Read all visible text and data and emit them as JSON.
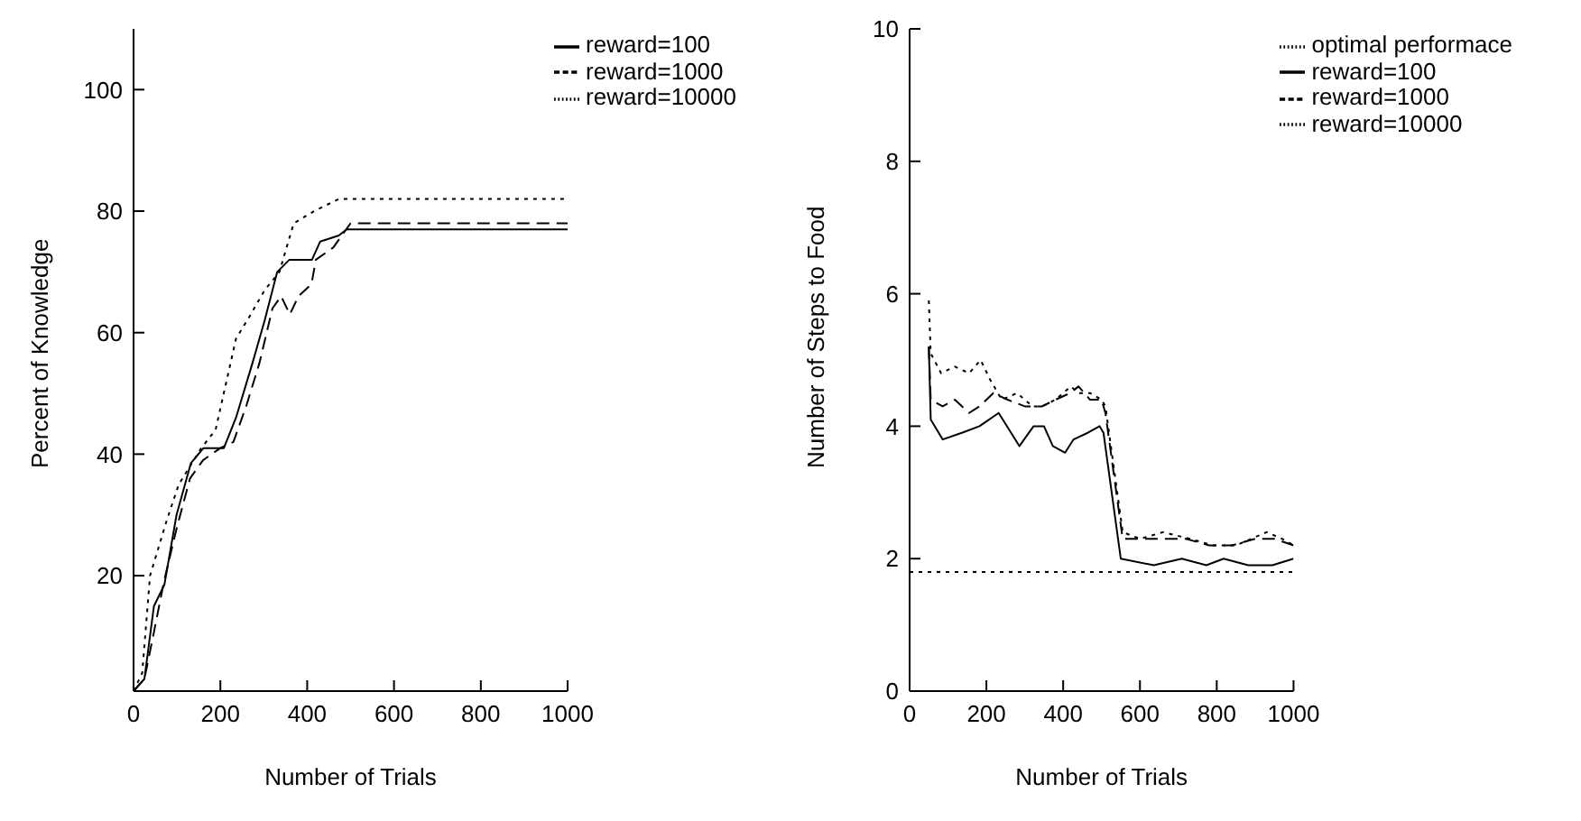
{
  "chart_data": [
    {
      "type": "line",
      "xlabel": "Number of Trials",
      "ylabel": "Percent of Knowledge",
      "xlim": [
        0,
        1000
      ],
      "xticks": [
        0,
        200,
        400,
        600,
        800,
        1000
      ],
      "ylim": [
        1,
        110
      ],
      "yticks": [
        20,
        40,
        60,
        80,
        100
      ],
      "legend": "top right",
      "grid": false,
      "series": [
        {
          "name": "reward=100",
          "color": "#000000",
          "line_style": "solid",
          "x": [
            0,
            25,
            47,
            71,
            99,
            132,
            161,
            208,
            236,
            274,
            302,
            331,
            359,
            411,
            430,
            473,
            491,
            1000
          ],
          "values": [
            1,
            3,
            15,
            18.5,
            30,
            38.5,
            41,
            41,
            46,
            55,
            62,
            70,
            72,
            72,
            75,
            76,
            77,
            77
          ]
        },
        {
          "name": "reward=1000",
          "color": "#000000",
          "line_style": "dashed",
          "x": [
            0,
            25,
            45,
            70,
            100,
            130,
            160,
            200,
            230,
            260,
            290,
            320,
            340,
            360,
            380,
            410,
            420,
            460,
            480,
            500,
            1000
          ],
          "values": [
            1,
            3,
            10,
            19,
            28,
            36,
            39,
            41,
            42,
            48,
            55,
            64,
            66,
            63,
            66,
            68,
            72,
            74,
            76,
            78,
            78
          ]
        },
        {
          "name": "reward=10000",
          "color": "#000000",
          "line_style": "dotted",
          "x": [
            0,
            20,
            38,
            76,
            104,
            156,
            189,
            236,
            270,
            302,
            336,
            369,
            416,
            473,
            1000
          ],
          "values": [
            1,
            4,
            20,
            29,
            35,
            41,
            44,
            59,
            63,
            67,
            70,
            78,
            80,
            82,
            82
          ]
        }
      ]
    },
    {
      "type": "line",
      "xlabel": "Number of Trials",
      "ylabel": "Number of Steps to Food",
      "xlim": [
        0,
        1000
      ],
      "xticks": [
        0,
        200,
        400,
        600,
        800,
        1000
      ],
      "ylim": [
        0,
        10
      ],
      "yticks": [
        0,
        2,
        4,
        6,
        8,
        10
      ],
      "legend": "top right",
      "grid": false,
      "series": [
        {
          "name": "optimal performace",
          "color": "#000000",
          "line_style": "dotted",
          "x": [
            0,
            1000
          ],
          "values": [
            1.8,
            1.8
          ]
        },
        {
          "name": "reward=100",
          "color": "#000000",
          "line_style": "solid",
          "x": [
            50,
            55,
            86,
            136,
            182,
            232,
            286,
            323,
            350,
            373,
            405,
            427,
            464,
            495,
            505,
            550,
            636,
            709,
            773,
            818,
            882,
            945,
            1000
          ],
          "values": [
            5.2,
            4.1,
            3.8,
            3.9,
            4,
            4.2,
            3.7,
            4,
            4,
            3.7,
            3.6,
            3.8,
            3.9,
            4,
            3.9,
            2,
            1.9,
            2,
            1.9,
            2,
            1.9,
            1.9,
            2
          ]
        },
        {
          "name": "reward=1000",
          "color": "#000000",
          "line_style": "dashed",
          "x": [
            50,
            55,
            86,
            118,
            155,
            182,
            218,
            255,
            300,
            345,
            380,
            418,
            440,
            470,
            500,
            510,
            555,
            600,
            660,
            720,
            780,
            840,
            900,
            950,
            1000
          ],
          "values": [
            5.2,
            4.4,
            4.3,
            4.4,
            4.2,
            4.3,
            4.5,
            4.4,
            4.3,
            4.3,
            4.4,
            4.5,
            4.6,
            4.4,
            4.4,
            4.2,
            2.3,
            2.3,
            2.3,
            2.3,
            2.2,
            2.2,
            2.3,
            2.3,
            2.2
          ]
        },
        {
          "name": "reward=10000",
          "color": "#000000",
          "line_style": "dotted",
          "x": [
            50,
            55,
            82,
            118,
            155,
            185,
            210,
            240,
            280,
            320,
            345,
            380,
            420,
            440,
            470,
            500,
            510,
            555,
            600,
            660,
            730,
            790,
            850,
            930,
            970,
            1000
          ],
          "values": [
            5.9,
            5.1,
            4.8,
            4.9,
            4.8,
            5,
            4.7,
            4.4,
            4.5,
            4.3,
            4.3,
            4.4,
            4.6,
            4.5,
            4.5,
            4.4,
            4.3,
            2.4,
            2.3,
            2.4,
            2.3,
            2.2,
            2.2,
            2.4,
            2.3,
            2.2
          ]
        }
      ]
    }
  ]
}
